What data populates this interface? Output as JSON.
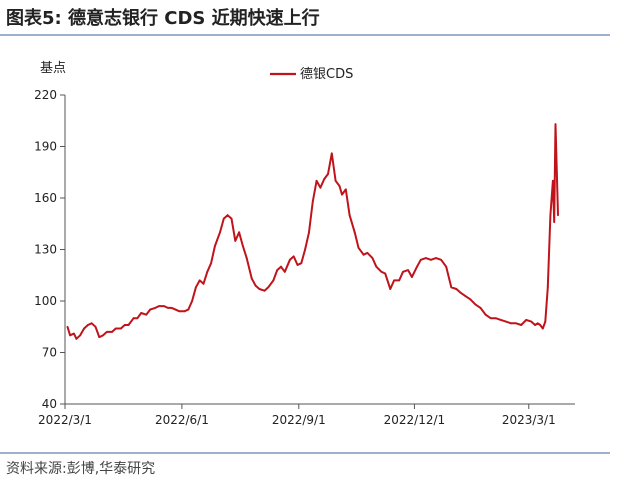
{
  "figure": {
    "title": "图表5:  德意志银行 CDS 近期快速上行",
    "source": "资料来源:彭博,华泰研究"
  },
  "chart_data": {
    "type": "line",
    "ylabel": "基点",
    "xlabel": "",
    "ylim": [
      40,
      220
    ],
    "yticks": [
      40,
      70,
      100,
      130,
      160,
      190,
      220
    ],
    "xticks": [
      "2022/3/1",
      "2022/6/1",
      "2022/9/1",
      "2022/12/1",
      "2023/3/1"
    ],
    "legend": "top-center",
    "grid": false,
    "series": [
      {
        "name": "德银CDS",
        "color": "#c0141b",
        "x": [
          "2022-03-03",
          "2022-03-05",
          "2022-03-08",
          "2022-03-10",
          "2022-03-13",
          "2022-03-16",
          "2022-03-19",
          "2022-03-22",
          "2022-03-25",
          "2022-03-28",
          "2022-03-31",
          "2022-04-03",
          "2022-04-07",
          "2022-04-10",
          "2022-04-14",
          "2022-04-17",
          "2022-04-20",
          "2022-04-24",
          "2022-04-27",
          "2022-04-30",
          "2022-05-04",
          "2022-05-07",
          "2022-05-11",
          "2022-05-14",
          "2022-05-18",
          "2022-05-21",
          "2022-05-24",
          "2022-05-27",
          "2022-05-30",
          "2022-06-03",
          "2022-06-06",
          "2022-06-09",
          "2022-06-12",
          "2022-06-15",
          "2022-06-18",
          "2022-06-21",
          "2022-06-24",
          "2022-06-27",
          "2022-07-01",
          "2022-07-04",
          "2022-07-07",
          "2022-07-10",
          "2022-07-13",
          "2022-07-16",
          "2022-07-19",
          "2022-07-22",
          "2022-07-26",
          "2022-07-29",
          "2022-08-01",
          "2022-08-05",
          "2022-08-08",
          "2022-08-12",
          "2022-08-15",
          "2022-08-18",
          "2022-08-21",
          "2022-08-25",
          "2022-08-28",
          "2022-08-31",
          "2022-09-03",
          "2022-09-06",
          "2022-09-09",
          "2022-09-12",
          "2022-09-15",
          "2022-09-18",
          "2022-09-21",
          "2022-09-24",
          "2022-09-27",
          "2022-09-30",
          "2022-10-03",
          "2022-10-05",
          "2022-10-08",
          "2022-10-11",
          "2022-10-15",
          "2022-10-18",
          "2022-10-22",
          "2022-10-25",
          "2022-10-29",
          "2022-11-01",
          "2022-11-05",
          "2022-11-08",
          "2022-11-12",
          "2022-11-15",
          "2022-11-19",
          "2022-11-22",
          "2022-11-26",
          "2022-11-29",
          "2022-12-03",
          "2022-12-06",
          "2022-12-10",
          "2022-12-14",
          "2022-12-18",
          "2022-12-22",
          "2022-12-26",
          "2022-12-30",
          "2023-01-03",
          "2023-01-06",
          "2023-01-10",
          "2023-01-14",
          "2023-01-18",
          "2023-01-22",
          "2023-01-26",
          "2023-01-30",
          "2023-02-03",
          "2023-02-07",
          "2023-02-11",
          "2023-02-15",
          "2023-02-19",
          "2023-02-23",
          "2023-02-27",
          "2023-03-03",
          "2023-03-06",
          "2023-03-08",
          "2023-03-10",
          "2023-03-12",
          "2023-03-14",
          "2023-03-16",
          "2023-03-18",
          "2023-03-20",
          "2023-03-21",
          "2023-03-22",
          "2023-03-24"
        ],
        "values": [
          85,
          80,
          81,
          78,
          80,
          84,
          86,
          87,
          85,
          79,
          80,
          82,
          82,
          84,
          84,
          86,
          86,
          90,
          90,
          93,
          92,
          95,
          96,
          97,
          97,
          96,
          96,
          95,
          94,
          94,
          95,
          100,
          108,
          112,
          110,
          117,
          122,
          132,
          140,
          148,
          150,
          148,
          135,
          140,
          132,
          125,
          113,
          109,
          107,
          106,
          108,
          112,
          118,
          120,
          117,
          124,
          126,
          121,
          122,
          130,
          140,
          158,
          170,
          166,
          171,
          174,
          186,
          170,
          167,
          162,
          165,
          150,
          140,
          131,
          127,
          128,
          125,
          120,
          117,
          116,
          107,
          112,
          112,
          117,
          118,
          114,
          120,
          124,
          125,
          124,
          125,
          124,
          120,
          108,
          107,
          105,
          103,
          101,
          98,
          96,
          92,
          90,
          90,
          89,
          88,
          87,
          87,
          86,
          89,
          88,
          86,
          87,
          86,
          84,
          88,
          108,
          150,
          170,
          146,
          203,
          150
        ]
      }
    ]
  }
}
